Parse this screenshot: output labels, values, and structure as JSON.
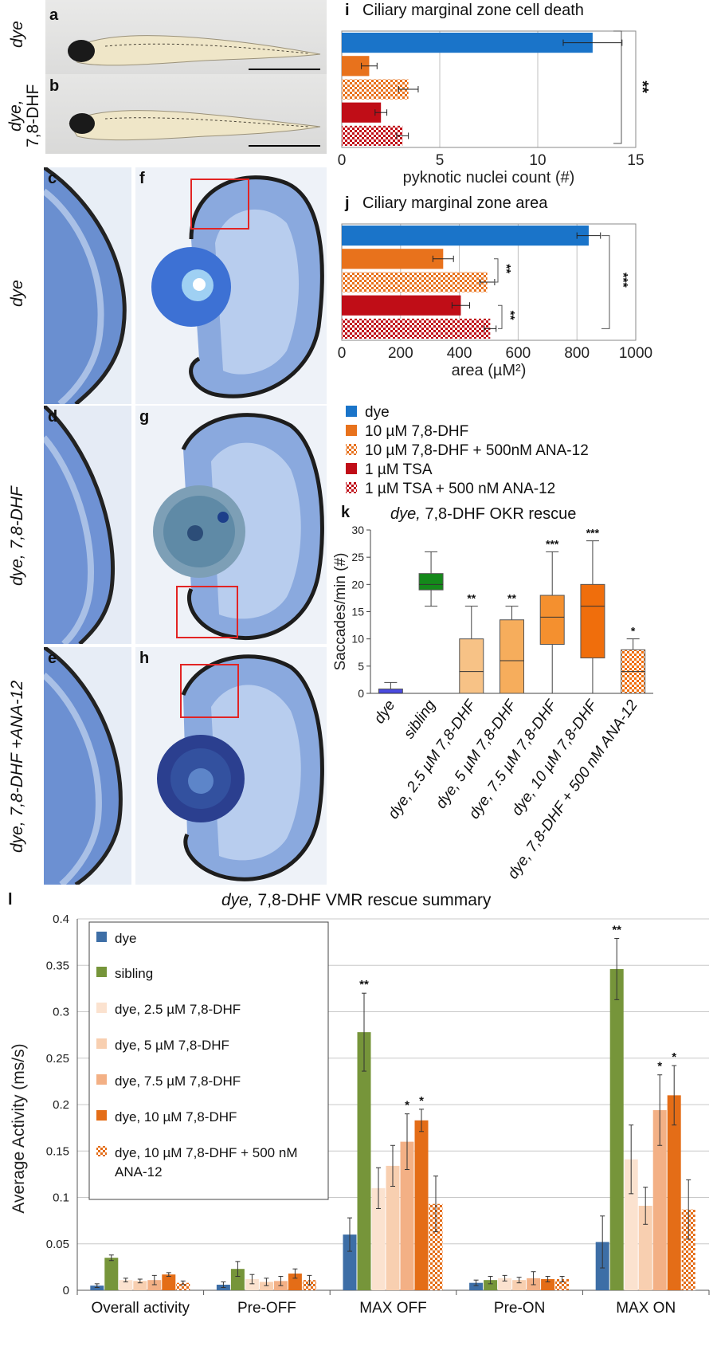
{
  "panels": {
    "a": "a",
    "b": "b",
    "c": "c",
    "d": "d",
    "e": "e",
    "f": "f",
    "g": "g",
    "h": "h",
    "i": "i",
    "j": "j",
    "k": "k",
    "l": "l"
  },
  "row_labels": {
    "ab_dye": "dye",
    "ab_dhf_1": "dye,",
    "ab_dhf_2": "7,8-DHF",
    "row1": "dye",
    "row2": "dye, 7,8-DHF",
    "row3": "dye, 7,8-DHF +ANA-12"
  },
  "legend_ij": [
    {
      "label": "dye",
      "color": "#1a74c9",
      "pattern": "solid"
    },
    {
      "label": "10 µM 7,8-DHF",
      "color": "#e8721c",
      "pattern": "solid"
    },
    {
      "label": "10 µM 7,8-DHF + 500nM ANA-12",
      "color": "#e8721c",
      "pattern": "check"
    },
    {
      "label": "1 µM TSA",
      "color": "#c00d17",
      "pattern": "solid"
    },
    {
      "label": "1 µM TSA + 500 nM ANA-12",
      "color": "#c00d17",
      "pattern": "check"
    }
  ],
  "chart_data": [
    {
      "id": "i",
      "type": "bar",
      "orientation": "horizontal",
      "title": "Ciliary marginal zone cell death",
      "xlabel": "pyknotic nuclei count (#)",
      "xlim": [
        0,
        15
      ],
      "xticks": [
        "0",
        "5",
        "10",
        "15"
      ],
      "grid": true,
      "categories": [
        "dye",
        "10 µM 7,8-DHF",
        "10 µM 7,8-DHF + 500nM ANA-12",
        "1 µM TSA",
        "1 µM TSA + 500 nM ANA-12"
      ],
      "values": [
        12.8,
        1.4,
        3.4,
        2.0,
        3.1
      ],
      "errors": [
        1.5,
        0.4,
        0.5,
        0.3,
        0.3
      ],
      "significance": [
        {
          "label": "**"
        }
      ]
    },
    {
      "id": "j",
      "type": "bar",
      "orientation": "horizontal",
      "title": "Ciliary marginal zone area",
      "xlabel": "area (µM²)",
      "xlim": [
        0,
        1000
      ],
      "xticks": [
        "0",
        "200",
        "400",
        "600",
        "800",
        "1000"
      ],
      "grid": true,
      "categories": [
        "dye",
        "10 µM 7,8-DHF",
        "10 µM 7,8-DHF + 500nM ANA-12",
        "1 µM TSA",
        "1 µM TSA + 500 nM ANA-12"
      ],
      "values": [
        840,
        345,
        495,
        405,
        505
      ],
      "errors": [
        40,
        35,
        25,
        30,
        20
      ],
      "significance": [
        {
          "label": "**"
        },
        {
          "label": "**"
        },
        {
          "label": "***"
        }
      ]
    },
    {
      "id": "k",
      "type": "box",
      "title_italic": "dye,",
      "title_rest": " 7,8-DHF OKR rescue",
      "ylabel": "Saccades/min (#)",
      "ylim": [
        0,
        30
      ],
      "yticks": [
        "0",
        "5",
        "10",
        "15",
        "20",
        "25",
        "30"
      ],
      "categories": [
        "dye",
        "sibling",
        "dye, 2.5 µM 7,8-DHF",
        "dye, 5 µM 7,8-DHF",
        "dye, 7.5 µM 7,8-DHF",
        "dye, 10 µM 7,8-DHF",
        "dye, 7,8-DHF + 500 nM ANA-12"
      ],
      "boxes": [
        {
          "min": 0,
          "q1": 0,
          "median": 0,
          "q3": 0.8,
          "max": 2,
          "color": "#4a4adf",
          "pattern": "solid",
          "sig": ""
        },
        {
          "min": 16,
          "q1": 19,
          "median": 20,
          "q3": 22,
          "max": 26,
          "color": "#14891a",
          "pattern": "solid",
          "sig": ""
        },
        {
          "min": 0,
          "q1": 0,
          "median": 4,
          "q3": 10,
          "max": 16,
          "color": "#f7c286",
          "pattern": "solid",
          "sig": "**"
        },
        {
          "min": 0,
          "q1": 0,
          "median": 6,
          "q3": 13.5,
          "max": 16,
          "color": "#f6ad5c",
          "pattern": "solid",
          "sig": "**"
        },
        {
          "min": 0,
          "q1": 9,
          "median": 14,
          "q3": 18,
          "max": 26,
          "color": "#f4902f",
          "pattern": "solid",
          "sig": "***"
        },
        {
          "min": 0,
          "q1": 6.5,
          "median": 16,
          "q3": 20,
          "max": 28,
          "color": "#f06e0c",
          "pattern": "solid",
          "sig": "***"
        },
        {
          "min": 0,
          "q1": 0,
          "median": 4,
          "q3": 8,
          "max": 10,
          "color": "#f06e0c",
          "pattern": "check",
          "sig": "*"
        }
      ]
    },
    {
      "id": "l",
      "type": "bar",
      "title_italic": "dye,",
      "title_rest": " 7,8-DHF VMR rescue summary",
      "ylabel": "Average Activity (ms/s)",
      "ylim": [
        0,
        0.4
      ],
      "yticks": [
        "0",
        "0.05",
        "0.1",
        "0.15",
        "0.2",
        "0.25",
        "0.3",
        "0.35",
        "0.4"
      ],
      "grid": true,
      "legend_position": "top-left",
      "categories": [
        "Overall activity",
        "Pre-OFF",
        "MAX OFF",
        "Pre-ON",
        "MAX ON"
      ],
      "series": [
        {
          "name": "dye",
          "color": "#3d6ea6",
          "pattern": "solid",
          "values": [
            0.005,
            0.006,
            0.06,
            0.008,
            0.052
          ],
          "errors": [
            0.002,
            0.003,
            0.018,
            0.003,
            0.028
          ],
          "sig": [
            "",
            "",
            "",
            "",
            ""
          ]
        },
        {
          "name": "sibling",
          "color": "#76953a",
          "pattern": "solid",
          "values": [
            0.035,
            0.023,
            0.278,
            0.011,
            0.346
          ],
          "errors": [
            0.003,
            0.008,
            0.042,
            0.004,
            0.033
          ],
          "sig": [
            "",
            "",
            "**",
            "",
            "**"
          ]
        },
        {
          "name": "dye, 2.5 µM 7,8-DHF",
          "color": "#fbe2cf",
          "pattern": "solid",
          "values": [
            0.011,
            0.012,
            0.11,
            0.013,
            0.141
          ],
          "errors": [
            0.002,
            0.005,
            0.022,
            0.003,
            0.037
          ],
          "sig": [
            "",
            "",
            "",
            "",
            ""
          ]
        },
        {
          "name": "dye, 5 µM 7,8-DHF",
          "color": "#f8cfb0",
          "pattern": "solid",
          "values": [
            0.01,
            0.009,
            0.134,
            0.011,
            0.091
          ],
          "errors": [
            0.002,
            0.004,
            0.022,
            0.003,
            0.02
          ],
          "sig": [
            "",
            "",
            "",
            "",
            ""
          ]
        },
        {
          "name": "dye, 7.5 µM 7,8-DHF",
          "color": "#f3b085",
          "pattern": "solid",
          "values": [
            0.011,
            0.01,
            0.16,
            0.013,
            0.194
          ],
          "errors": [
            0.005,
            0.005,
            0.03,
            0.007,
            0.038
          ],
          "sig": [
            "",
            "",
            "*",
            "",
            "*"
          ]
        },
        {
          "name": "dye, 10 µM 7,8-DHF",
          "color": "#e46d17",
          "pattern": "solid",
          "values": [
            0.017,
            0.018,
            0.183,
            0.012,
            0.21
          ],
          "errors": [
            0.002,
            0.005,
            0.012,
            0.003,
            0.032
          ],
          "sig": [
            "",
            "",
            "*",
            "",
            "*"
          ]
        },
        {
          "name": "dye, 10 µM 7,8-DHF + 500 nM ANA-12",
          "color": "#e46d17",
          "pattern": "check",
          "values": [
            0.008,
            0.011,
            0.093,
            0.012,
            0.087
          ],
          "errors": [
            0.002,
            0.005,
            0.03,
            0.003,
            0.032
          ],
          "sig": [
            "",
            "",
            "",
            "",
            ""
          ]
        }
      ]
    }
  ]
}
